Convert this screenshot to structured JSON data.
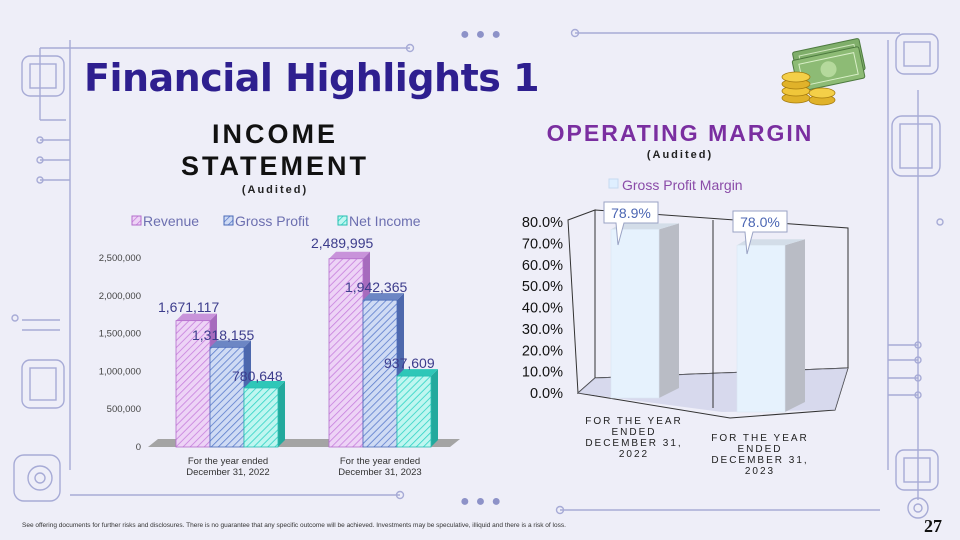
{
  "page": {
    "title": "Financial Highlights 1",
    "footer": "See offering documents for further risks and disclosures. There is no guarantee that any specific outcome will be achieved. Investments may be speculative, illiquid and there is a risk of loss.",
    "page_number": "27"
  },
  "income_section": {
    "heading_line1": "INCOME",
    "heading_line2": "STATEMENT",
    "subheading": "(Audited)"
  },
  "margin_section": {
    "heading": "OPERATING MARGIN",
    "subheading": "(Audited)"
  },
  "colors": {
    "title": "#2e1f8f",
    "revenue": "#d79be8",
    "gross_profit": "#6e8fd6",
    "net_income": "#3fe0d2",
    "margin_bar": "#e4f0fc",
    "op_heading": "#7a2ea0"
  },
  "chart_data": [
    {
      "type": "bar",
      "title": "",
      "categories": [
        "For the year ended December 31, 2022",
        "For the year ended December 31, 2023"
      ],
      "series": [
        {
          "name": "Revenue",
          "values": [
            1671117,
            2489995
          ],
          "labels": [
            "1,671,117",
            "2,489,995"
          ]
        },
        {
          "name": "Gross Profit",
          "values": [
            1318155,
            1942365
          ],
          "labels": [
            "1,318,155",
            "1,942,365"
          ]
        },
        {
          "name": "Net Income",
          "values": [
            780648,
            937609
          ],
          "labels": [
            "780,648",
            "937,609"
          ]
        }
      ],
      "ylim": [
        0,
        2500000
      ],
      "yticks": [
        "0",
        "500,000",
        "1,000,000",
        "1,500,000",
        "2,000,000",
        "2,500,000"
      ],
      "legend": "top",
      "grid": false,
      "style": "3d-hatched"
    },
    {
      "type": "bar",
      "title": "",
      "categories": [
        "FOR THE YEAR ENDED DECEMBER 31, 2022",
        "FOR THE YEAR ENDED DECEMBER 31, 2023"
      ],
      "series": [
        {
          "name": "Gross Profit Margin",
          "values": [
            78.9,
            78.0
          ],
          "labels": [
            "78.9%",
            "78.0%"
          ]
        }
      ],
      "ylim": [
        0,
        80
      ],
      "yticks": [
        "0.0%",
        "10.0%",
        "20.0%",
        "30.0%",
        "40.0%",
        "50.0%",
        "60.0%",
        "70.0%",
        "80.0%"
      ],
      "legend": "top",
      "grid": false,
      "style": "3d"
    }
  ]
}
